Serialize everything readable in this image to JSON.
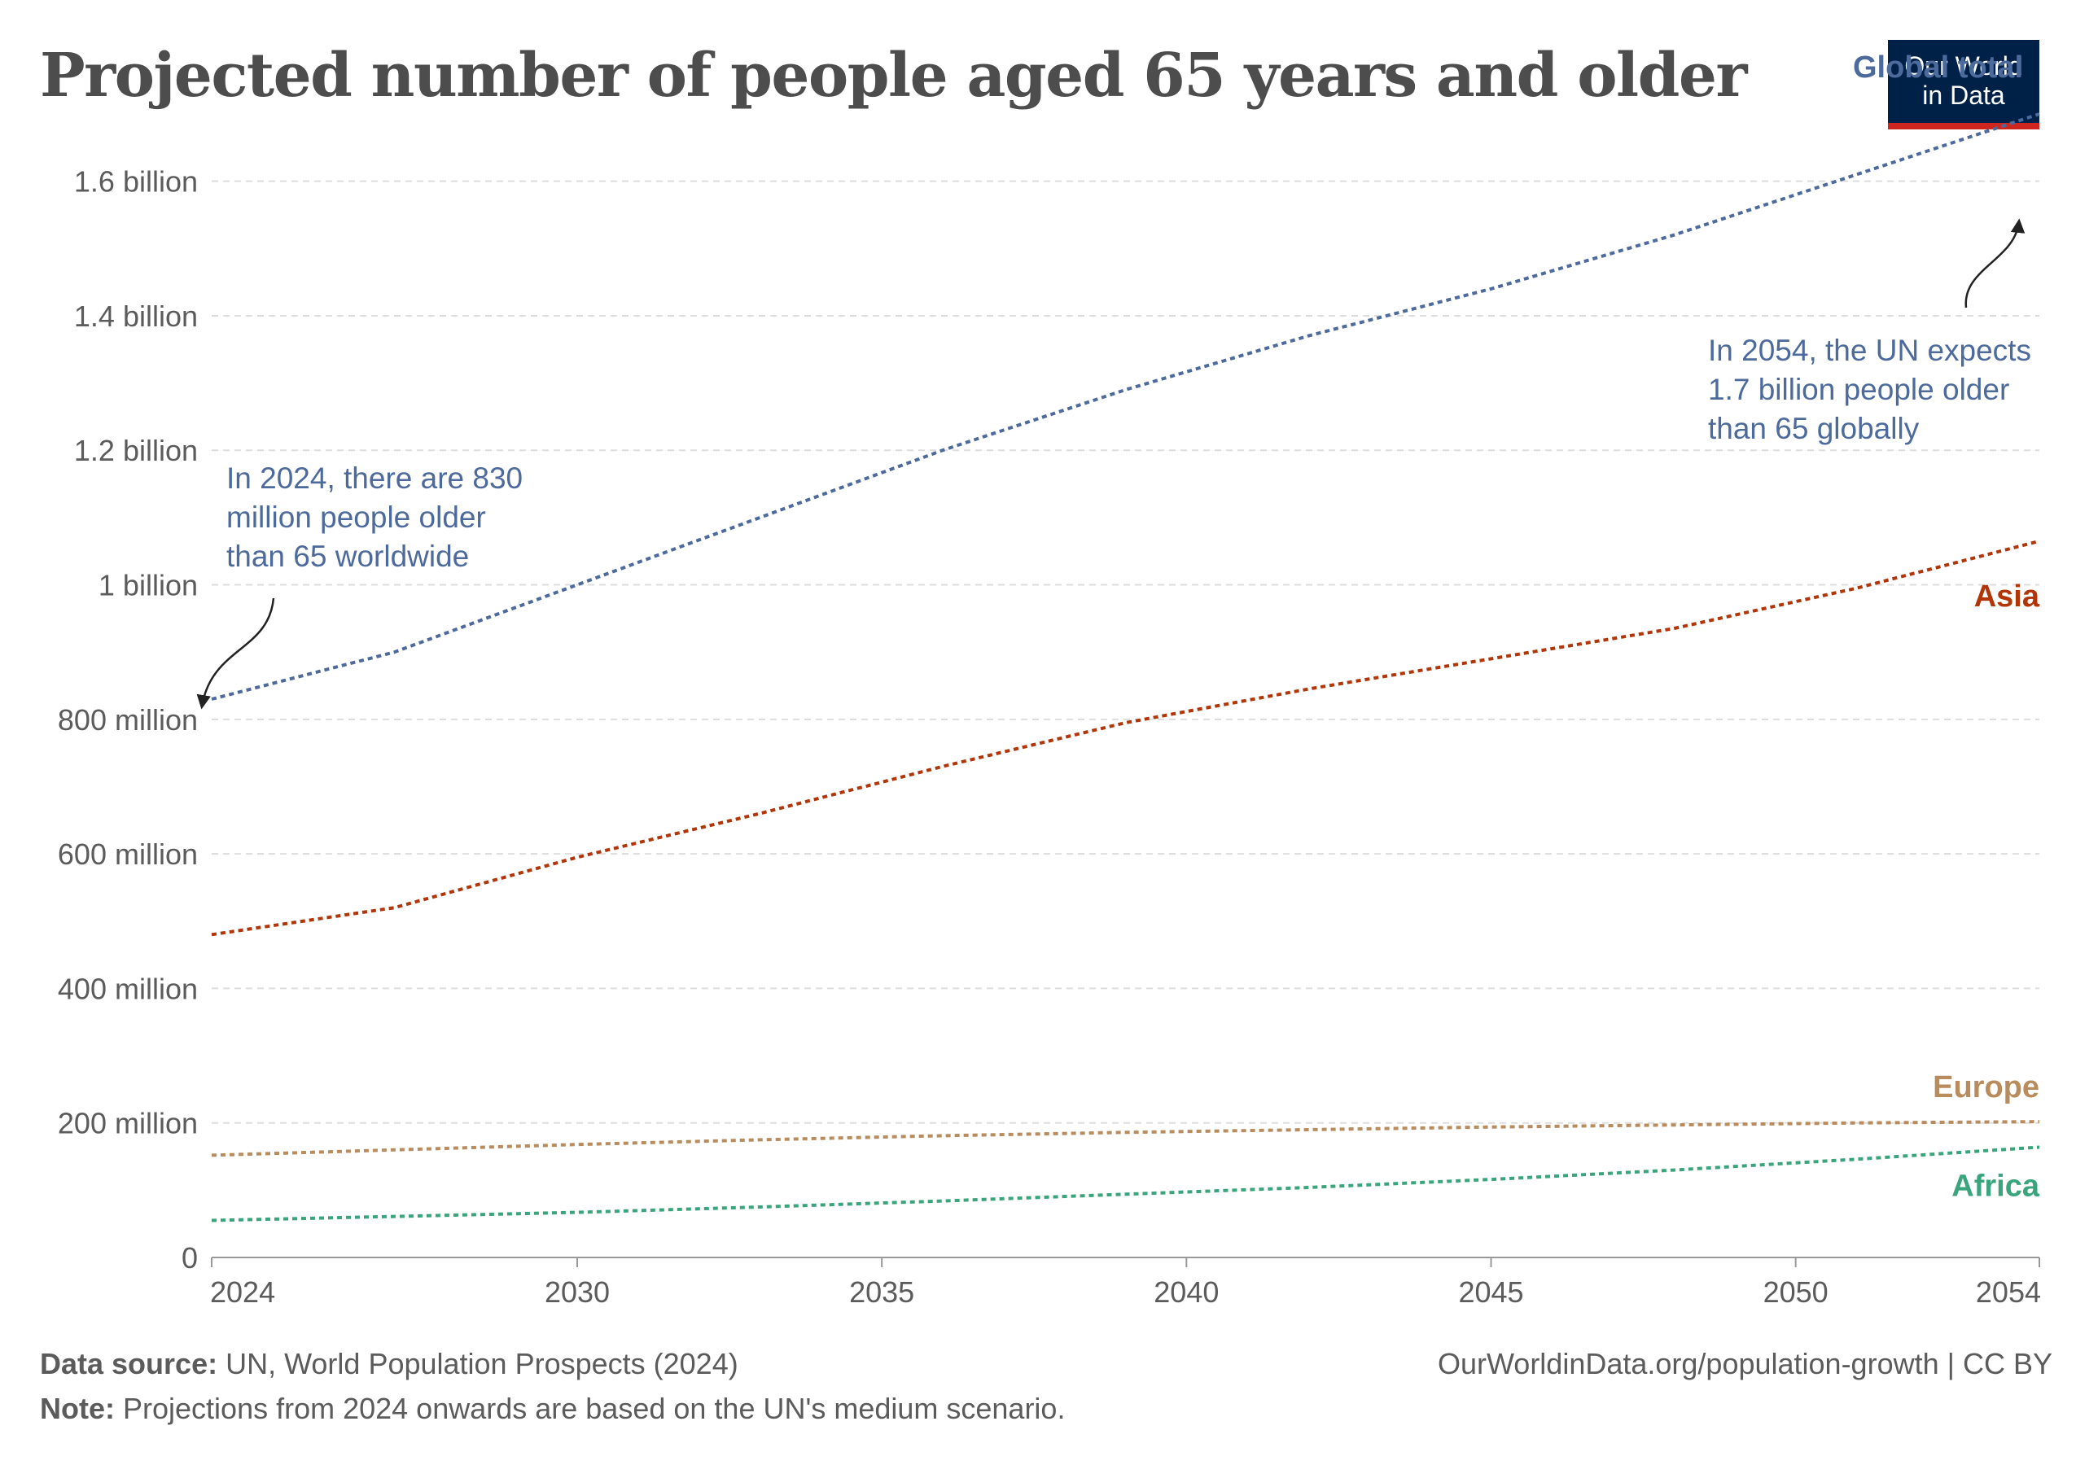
{
  "title": "Projected number of people aged 65 years and older",
  "logo": {
    "line1": "Our World",
    "line2": "in Data"
  },
  "chart_data": {
    "type": "line",
    "title": "Projected number of people aged 65 years and older",
    "xlabel": "",
    "ylabel": "",
    "xlim": [
      2024,
      2054
    ],
    "ylim": [
      0,
      1700000000
    ],
    "x_ticks": [
      2024,
      2030,
      2035,
      2040,
      2045,
      2050,
      2054
    ],
    "x_tick_labels": [
      "2024",
      "2030",
      "2035",
      "2040",
      "2045",
      "2050",
      "2054"
    ],
    "y_ticks": [
      0,
      200000000,
      400000000,
      600000000,
      800000000,
      1000000000,
      1200000000,
      1400000000,
      1600000000
    ],
    "y_tick_labels": [
      "0",
      "200 million",
      "400 million",
      "600 million",
      "800 million",
      "1 billion",
      "1.2 billion",
      "1.4 billion",
      "1.6 billion"
    ],
    "grid": "horizontal dashed",
    "line_style": "dotted",
    "legend": "inline labels at right end of lines",
    "x": [
      2024,
      2027,
      2030,
      2033,
      2036,
      2039,
      2042,
      2045,
      2048,
      2051,
      2054
    ],
    "series": [
      {
        "name": "Global total",
        "color": "#4c6a9c",
        "values": [
          830000000,
          900000000,
          1000000000,
          1100000000,
          1200000000,
          1290000000,
          1370000000,
          1440000000,
          1520000000,
          1610000000,
          1700000000
        ]
      },
      {
        "name": "Asia",
        "color": "#b13507",
        "values": [
          480000000,
          520000000,
          595000000,
          660000000,
          730000000,
          795000000,
          845000000,
          890000000,
          935000000,
          995000000,
          1065000000
        ]
      },
      {
        "name": "Europe",
        "color": "#b98c5d",
        "values": [
          152000000,
          160000000,
          168000000,
          175000000,
          181000000,
          186000000,
          190000000,
          194000000,
          197000000,
          200000000,
          202000000
        ]
      },
      {
        "name": "Africa",
        "color": "#3aa57c",
        "values": [
          55000000,
          61000000,
          67000000,
          75000000,
          84000000,
          94000000,
          104000000,
          116000000,
          130000000,
          146000000,
          164000000
        ]
      }
    ],
    "annotations": [
      {
        "text_lines": [
          "In 2024, there are 830",
          "million people older",
          "than 65 worldwide"
        ],
        "x": 2024,
        "y": 830000000,
        "color": "#4c6a9c"
      },
      {
        "text_lines": [
          "In 2054, the UN expects",
          "1.7 billion people older",
          "than 65 globally"
        ],
        "x": 2054,
        "y": 1700000000,
        "color": "#4c6a9c"
      }
    ]
  },
  "footer": {
    "source_label": "Data source:",
    "source_text": " UN, World Population Prospects (2024)",
    "note_label": "Note:",
    "note_text": " Projections from 2024 onwards are based on the UN's medium scenario.",
    "url": "OurWorldinData.org/population-growth | CC BY"
  }
}
